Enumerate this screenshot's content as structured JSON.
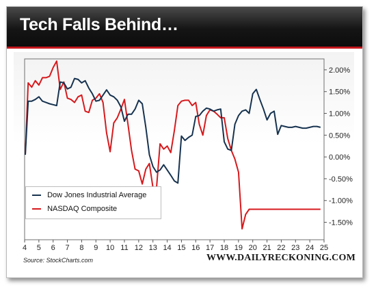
{
  "banner": {
    "title": "Tech Falls Behind…"
  },
  "source": "Source: StockCharts.com",
  "site": "WWW.DAILYRECKONING.COM",
  "chart_data": {
    "type": "line",
    "x_ticks": [
      4,
      5,
      6,
      7,
      8,
      9,
      10,
      11,
      12,
      13,
      14,
      15,
      16,
      17,
      18,
      19,
      20,
      21,
      22,
      23,
      24,
      25
    ],
    "y_ticks": [
      2.0,
      1.5,
      1.0,
      0.5,
      0.0,
      -0.5,
      -1.0,
      -1.5
    ],
    "y_tick_labels": [
      "2.00%",
      "1.50%",
      "1.00%",
      "0.50%",
      "0.00%",
      "-0.50%",
      "-1.00%",
      "-1.50%"
    ],
    "xlim": [
      4,
      25
    ],
    "ylim": [
      -1.9,
      2.25
    ],
    "legend_position": "bottom-left",
    "grid": false,
    "series": [
      {
        "name": "Dow Jones Industrial Average",
        "color": "#16324f",
        "x": [
          4.05,
          4.25,
          4.5,
          4.75,
          5.0,
          5.25,
          5.5,
          5.75,
          6.0,
          6.25,
          6.5,
          6.75,
          7.0,
          7.25,
          7.5,
          7.75,
          8.0,
          8.25,
          8.5,
          8.75,
          9.0,
          9.25,
          9.5,
          9.75,
          10.0,
          10.25,
          10.5,
          10.75,
          11.0,
          11.25,
          11.5,
          11.75,
          12.0,
          12.25,
          12.5,
          12.75,
          13.0,
          13.25,
          13.5,
          13.75,
          14.0,
          14.25,
          14.5,
          14.75,
          15.0,
          15.25,
          15.5,
          15.75,
          16.0,
          16.25,
          16.5,
          16.75,
          17.0,
          17.25,
          17.5,
          17.75,
          18.0,
          18.25,
          18.5,
          18.75,
          19.0,
          19.25,
          19.5,
          19.75,
          20.0,
          20.25,
          20.5,
          20.75,
          21.0,
          21.25,
          21.5,
          21.75,
          22.0,
          22.25,
          22.5,
          22.75,
          23.0,
          23.25,
          23.5,
          23.75,
          24.0,
          24.25,
          24.5,
          24.75
        ],
        "y": [
          0.05,
          1.28,
          1.28,
          1.32,
          1.38,
          1.28,
          1.25,
          1.22,
          1.2,
          1.18,
          1.72,
          1.7,
          1.56,
          1.6,
          1.8,
          1.78,
          1.7,
          1.75,
          1.58,
          1.45,
          1.28,
          1.3,
          1.42,
          1.54,
          1.42,
          1.38,
          1.3,
          1.15,
          0.82,
          0.98,
          0.98,
          1.1,
          1.3,
          1.22,
          0.68,
          0.05,
          -0.22,
          -0.35,
          -0.3,
          -0.18,
          -0.3,
          -0.42,
          -0.55,
          -0.6,
          0.48,
          0.38,
          0.45,
          0.5,
          0.93,
          0.95,
          1.05,
          1.12,
          1.1,
          1.05,
          1.08,
          1.1,
          0.35,
          0.18,
          0.15,
          0.75,
          0.95,
          1.05,
          1.08,
          1.0,
          1.45,
          1.55,
          1.32,
          1.1,
          0.85,
          1.0,
          1.05,
          0.52,
          0.72,
          0.7,
          0.68,
          0.68,
          0.7,
          0.68,
          0.66,
          0.66,
          0.68,
          0.7,
          0.7,
          0.68
        ]
      },
      {
        "name": "NASDAQ Composite",
        "color": "#d7191c",
        "x": [
          4.05,
          4.25,
          4.5,
          4.75,
          5.0,
          5.25,
          5.5,
          5.75,
          6.0,
          6.25,
          6.5,
          6.75,
          7.0,
          7.25,
          7.5,
          7.75,
          8.0,
          8.25,
          8.5,
          8.75,
          9.0,
          9.25,
          9.5,
          9.75,
          10.0,
          10.25,
          10.5,
          10.75,
          11.0,
          11.25,
          11.5,
          11.75,
          12.0,
          12.25,
          12.5,
          12.75,
          13.0,
          13.25,
          13.5,
          13.75,
          14.0,
          14.25,
          14.5,
          14.75,
          15.0,
          15.25,
          15.5,
          15.75,
          16.0,
          16.25,
          16.5,
          16.75,
          17.0,
          17.25,
          17.5,
          17.75,
          18.0,
          18.25,
          18.5,
          18.75,
          19.0,
          19.25,
          19.5,
          19.75,
          20.0,
          20.25,
          20.5,
          20.75,
          21.0,
          21.25,
          21.5,
          21.75,
          22.0,
          22.25,
          22.5,
          22.75,
          23.0,
          23.25,
          23.5,
          23.75,
          24.0,
          24.25,
          24.5,
          24.75
        ],
        "y": [
          0.05,
          1.7,
          1.6,
          1.75,
          1.65,
          1.82,
          1.82,
          1.85,
          2.05,
          2.2,
          1.55,
          1.72,
          1.35,
          1.32,
          1.25,
          1.38,
          1.42,
          1.05,
          1.02,
          1.3,
          1.35,
          1.45,
          1.25,
          0.55,
          0.12,
          0.78,
          0.9,
          1.1,
          1.32,
          0.75,
          0.15,
          -0.28,
          -0.32,
          -0.62,
          -0.28,
          -0.15,
          -0.7,
          -0.72,
          0.3,
          0.18,
          0.25,
          0.1,
          0.6,
          1.18,
          1.28,
          1.3,
          1.3,
          1.18,
          1.25,
          0.75,
          0.5,
          0.95,
          1.08,
          1.05,
          0.98,
          0.9,
          0.9,
          0.42,
          0.15,
          -0.05,
          -0.35,
          -1.65,
          -1.32,
          -1.2,
          -1.2,
          -1.2,
          -1.2,
          -1.2,
          -1.2,
          -1.2,
          -1.2,
          -1.2,
          -1.2,
          -1.2,
          -1.2,
          -1.2,
          -1.2,
          -1.2,
          -1.2,
          -1.2,
          -1.2,
          -1.2,
          -1.2,
          -1.2
        ]
      }
    ]
  }
}
